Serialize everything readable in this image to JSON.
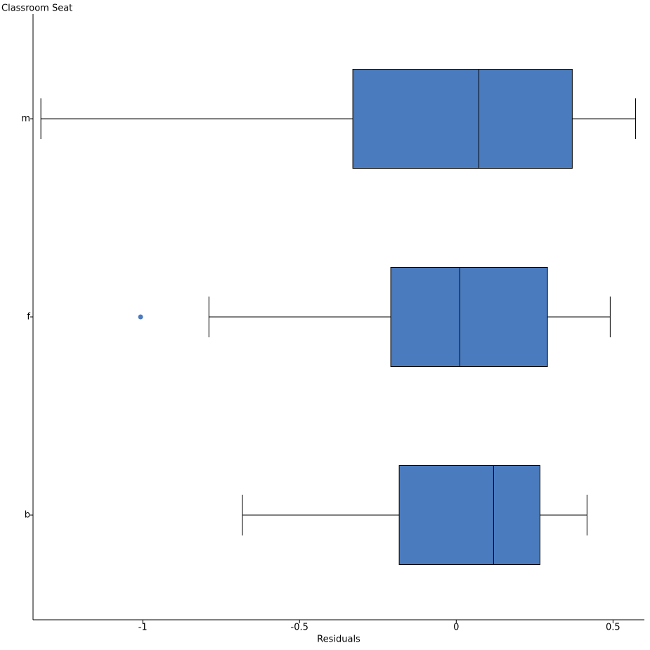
{
  "chart_data": {
    "type": "box",
    "orientation": "horizontal",
    "xlabel": "Residuals",
    "ylabel": "Classroom Seat",
    "categories": [
      "b",
      "f",
      "m"
    ],
    "color": "#4a7bbf",
    "boxes": [
      {
        "low": -0.682,
        "q1": -0.182,
        "median": 0.119,
        "q3": 0.267,
        "high": 0.417,
        "outliers": []
      },
      {
        "low": -0.789,
        "q1": -0.209,
        "median": 0.011,
        "q3": 0.291,
        "high": 0.491,
        "outliers": [
          -1.007
        ]
      },
      {
        "low": -1.325,
        "q1": -0.33,
        "median": 0.072,
        "q3": 0.37,
        "high": 0.572,
        "outliers": []
      }
    ],
    "xlim": [
      -1.35,
      0.6
    ],
    "xticks": [
      -1,
      -0.5,
      0,
      0.5
    ],
    "grid": false
  }
}
